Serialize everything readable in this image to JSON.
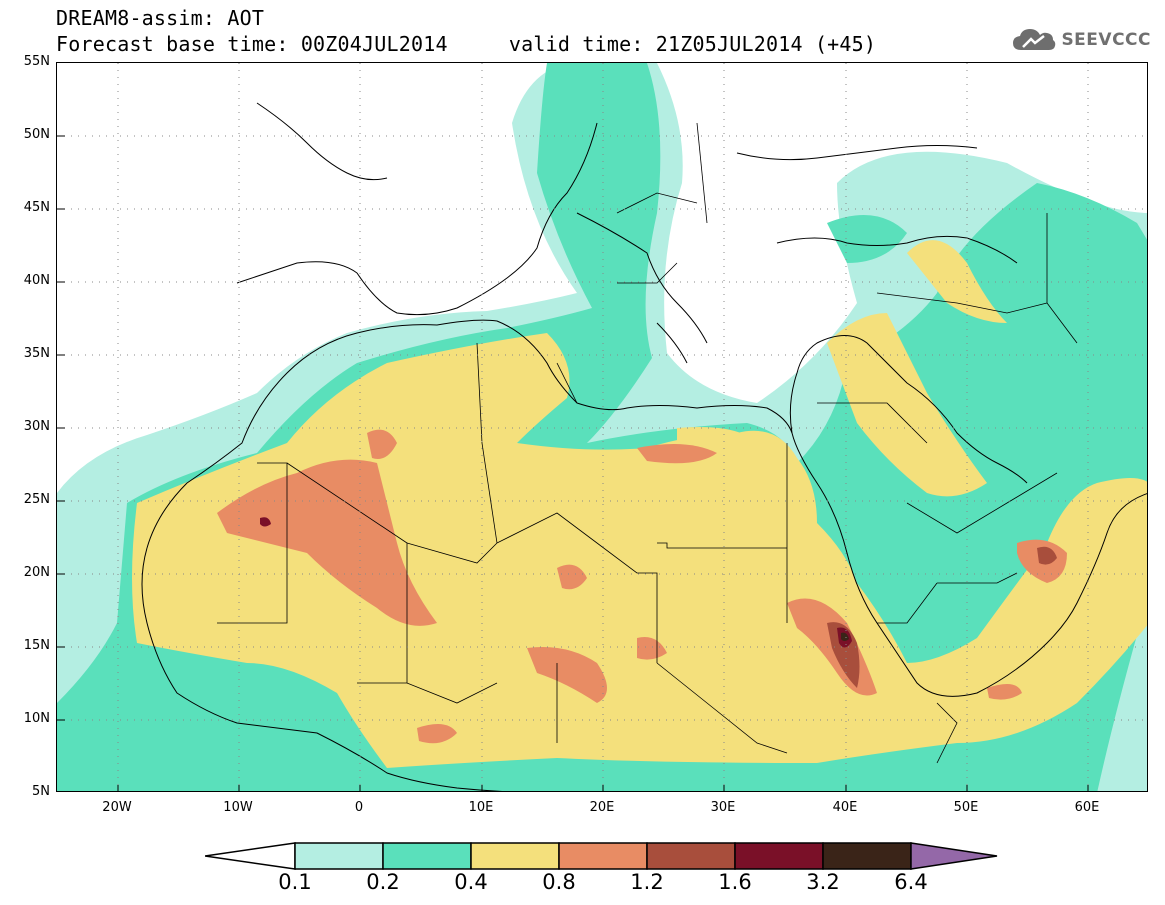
{
  "header": {
    "title_line1": "DREAM8-assim: AOT",
    "title_line2": "Forecast base time: 00Z04JUL2014     valid time: 21Z05JUL2014 (+45)"
  },
  "brand": {
    "name": "SEEVCCC",
    "icon": "cloud-icon"
  },
  "map": {
    "lat_labels": [
      "55N",
      "50N",
      "45N",
      "40N",
      "35N",
      "30N",
      "25N",
      "20N",
      "15N",
      "10N",
      "5N"
    ],
    "lon_labels": [
      "20W",
      "10W",
      "0",
      "10E",
      "20E",
      "30E",
      "40E",
      "50E",
      "60E"
    ],
    "lat_range": [
      5,
      55
    ],
    "lon_range": [
      -25,
      65
    ],
    "grid": "dotted"
  },
  "legend": {
    "labels": [
      "0.1",
      "0.2",
      "0.4",
      "0.8",
      "1.2",
      "1.6",
      "3.2",
      "6.4"
    ],
    "colors": [
      "#ffffff",
      "#b4eee2",
      "#5ae0bb",
      "#f4e07c",
      "#e88c64",
      "#a84e3c",
      "#7a1028",
      "#3a2418",
      "#9468a8"
    ]
  },
  "colors": {
    "c1": "#b4eee2",
    "c2": "#5ae0bb",
    "c3": "#f4e07c",
    "c4": "#e88c64",
    "c5": "#a84e3c",
    "c6": "#7a1028",
    "c7": "#3a2418"
  }
}
